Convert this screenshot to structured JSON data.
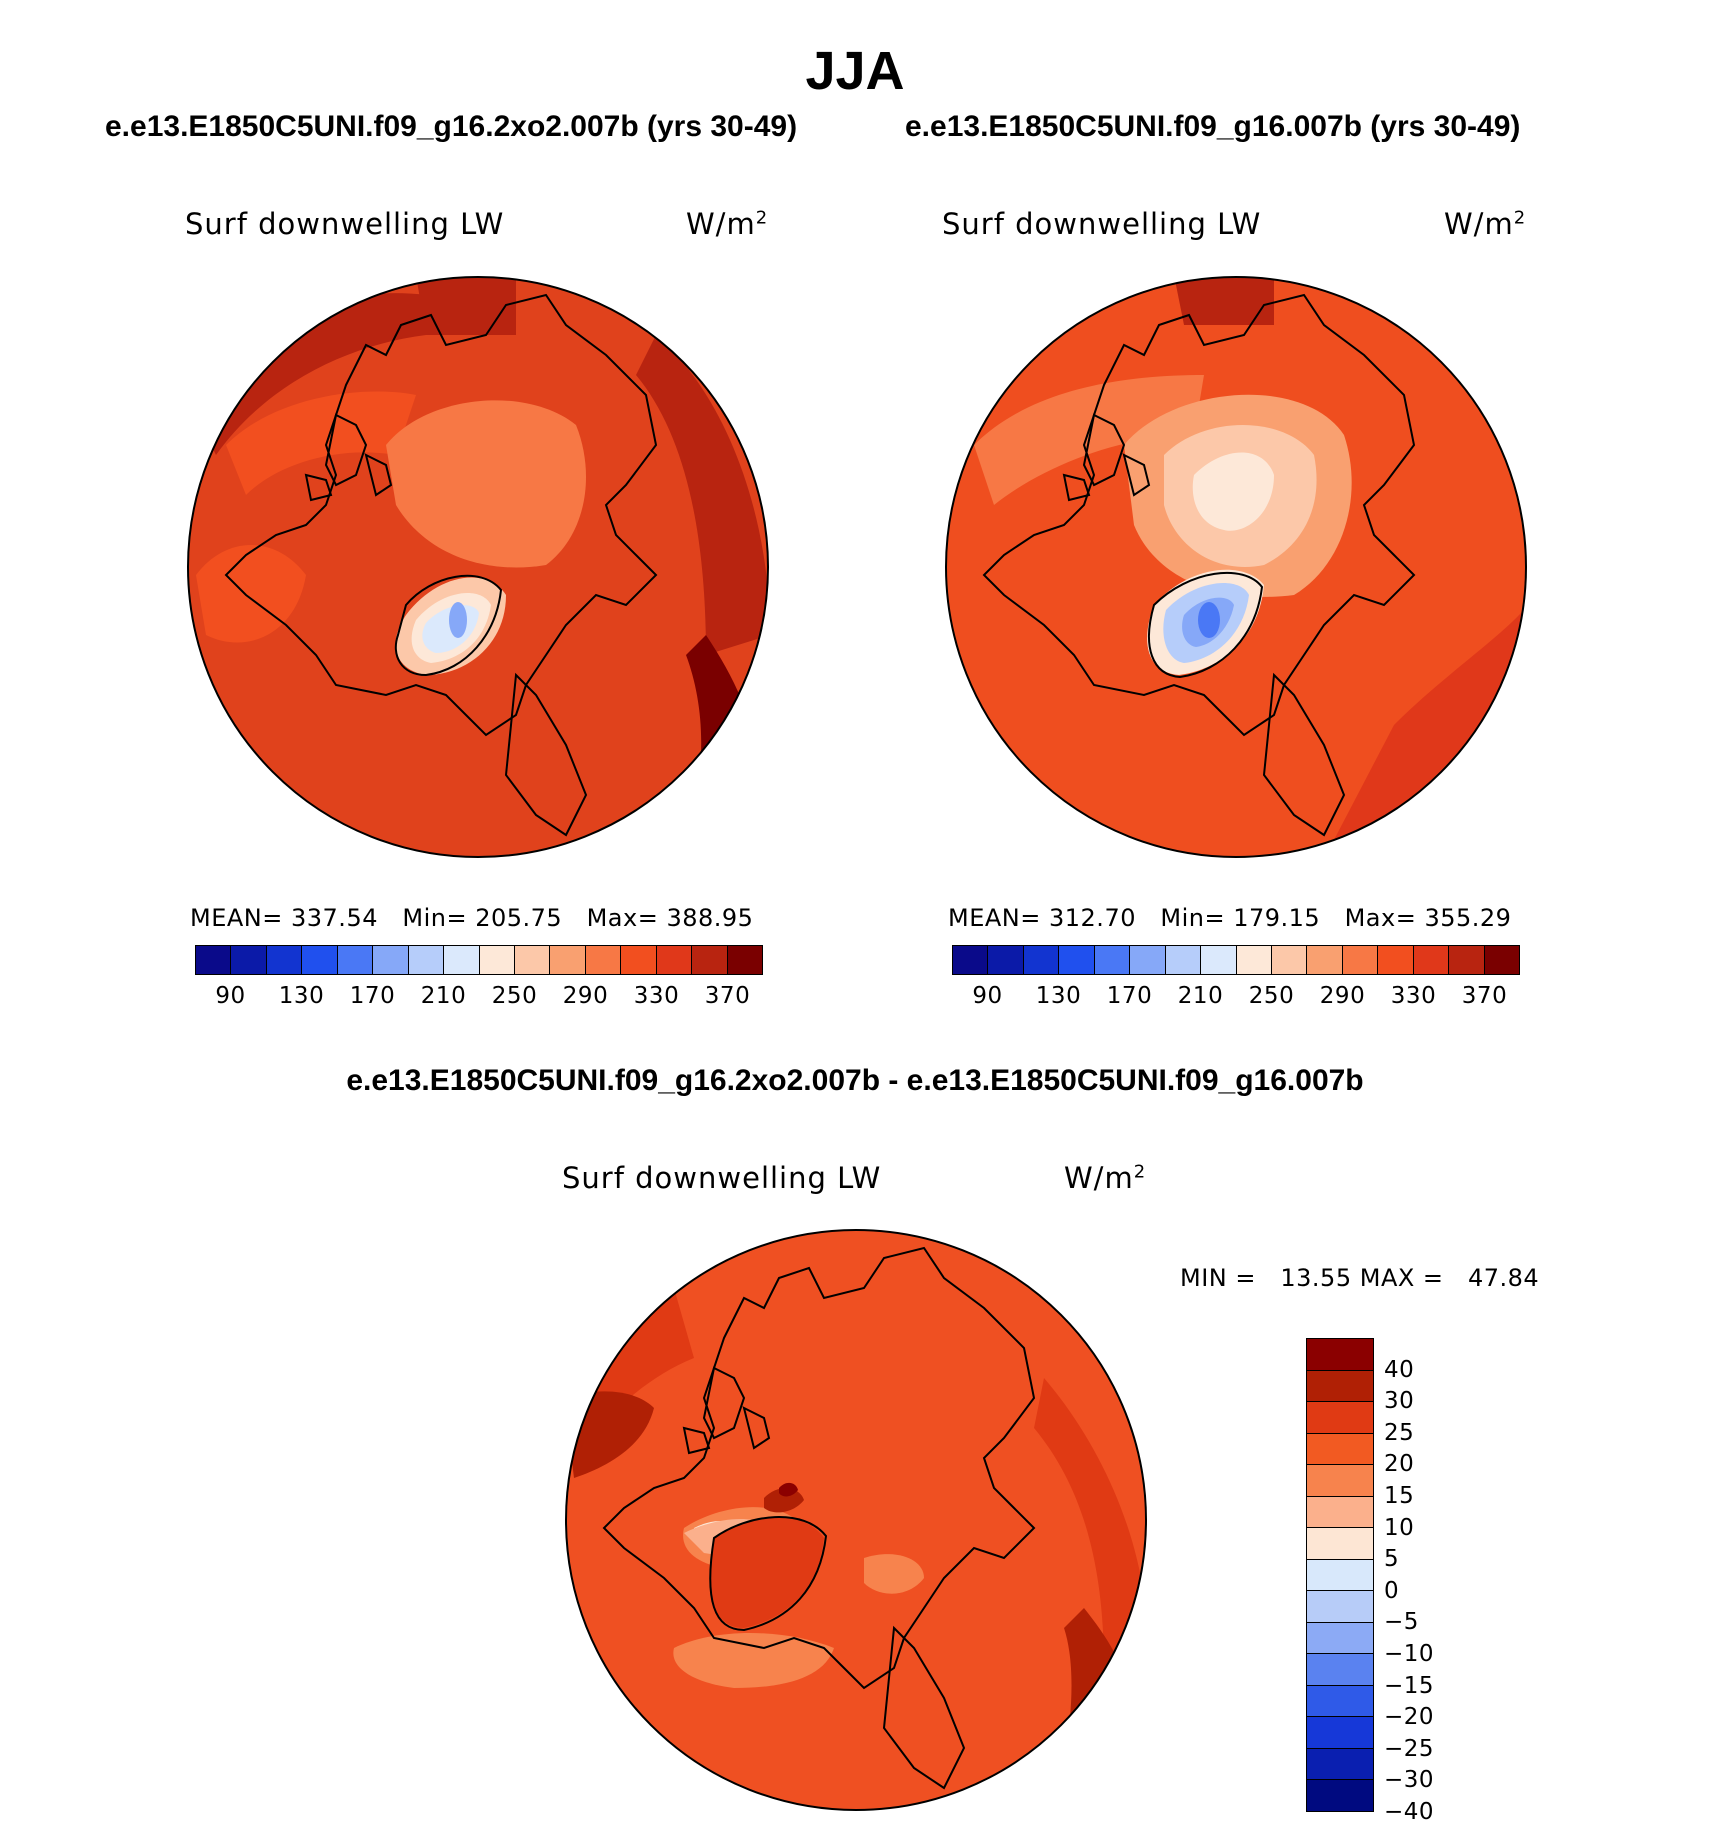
{
  "title": "JJA",
  "panels": [
    {
      "case_label": "e.e13.E1850C5UNI.f09_g16.2xo2.007b (yrs 30-49)",
      "variable": "Surf downwelling LW",
      "units_base": "W/m",
      "units_exp": "2",
      "stats": {
        "mean_label": "MEAN=",
        "mean": "337.54",
        "min_label": "Min=",
        "min": "205.75",
        "max_label": "Max=",
        "max": "388.95"
      },
      "background_color": "#e0421c"
    },
    {
      "case_label": "e.e13.E1850C5UNI.f09_g16.007b (yrs 30-49)",
      "variable": "Surf downwelling LW",
      "units_base": "W/m",
      "units_exp": "2",
      "stats": {
        "mean_label": "MEAN=",
        "mean": "312.70",
        "min_label": "Min=",
        "min": "179.15",
        "max_label": "Max=",
        "max": "355.29"
      },
      "background_color": "#ef4e1f"
    }
  ],
  "abs_colorbar": {
    "colors": [
      "#0a0a8a",
      "#0b1aa8",
      "#1234d0",
      "#2050ee",
      "#4a78f5",
      "#86a8f8",
      "#b6cdfa",
      "#dbe9fc",
      "#fde8d8",
      "#fcc8a9",
      "#f9a070",
      "#f77845",
      "#f24f1f",
      "#e0381a",
      "#b82410",
      "#7a0000"
    ],
    "tick_labels": [
      "90",
      "130",
      "170",
      "210",
      "250",
      "290",
      "330",
      "370"
    ]
  },
  "diff_panel": {
    "title": "e.e13.E1850C5UNI.f09_g16.2xo2.007b - e.e13.E1850C5UNI.f09_g16.007b",
    "variable": "Surf downwelling LW",
    "units_base": "W/m",
    "units_exp": "2",
    "stats": {
      "min_label": "MIN =",
      "min": "13.55",
      "max_label": "MAX =",
      "max": "47.84"
    },
    "background_color": "#ef5022",
    "colorbar": {
      "colors": [
        "#8b0000",
        "#b02005",
        "#e03a14",
        "#f25a22",
        "#f7834d",
        "#fbb08c",
        "#fde6d4",
        "#d8e8fb",
        "#b7ccf8",
        "#8caaf5",
        "#5a82f0",
        "#2f5ae8",
        "#1638d8",
        "#0a1fb0",
        "#000a80"
      ],
      "tick_labels": [
        "40",
        "30",
        "25",
        "20",
        "15",
        "10",
        "5",
        "0",
        "−5",
        "−10",
        "−15",
        "−20",
        "−25",
        "−30",
        "−40"
      ]
    }
  }
}
